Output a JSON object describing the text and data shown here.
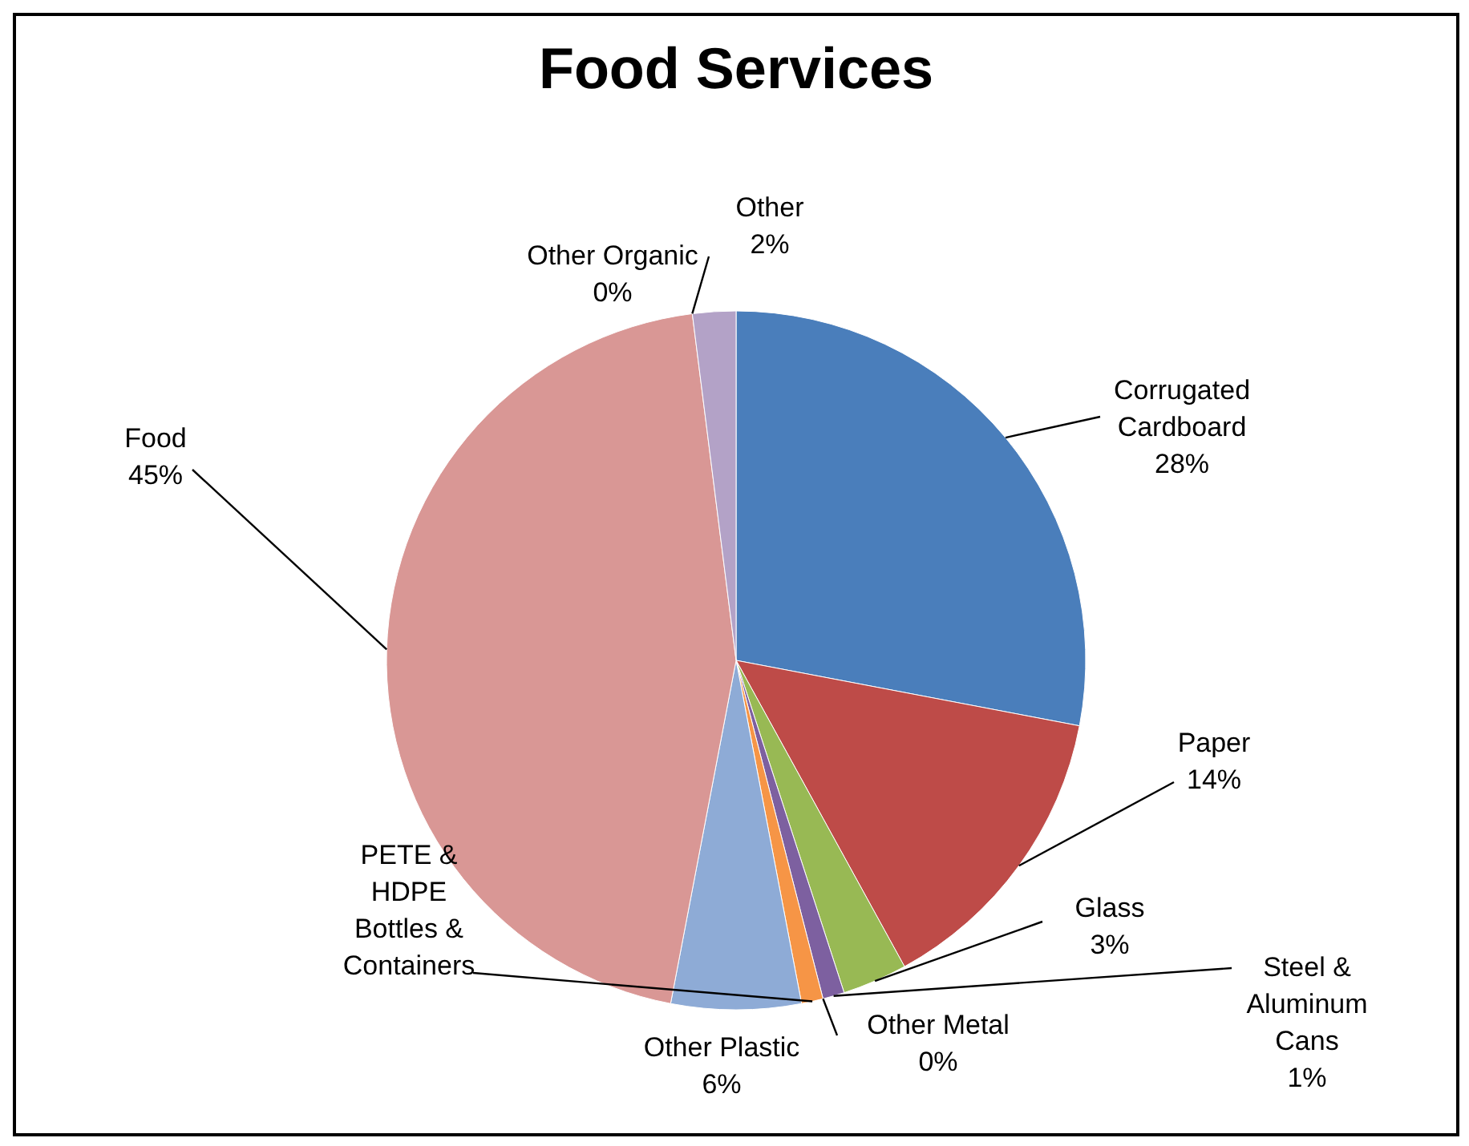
{
  "chart_data": {
    "type": "pie",
    "title": "Food Services",
    "categories": [
      "Corrugated Cardboard",
      "Paper",
      "Glass",
      "Steel & Aluminum Cans",
      "Other Metal",
      "PETE & HDPE Bottles & Containers",
      "Other Plastic",
      "Food",
      "Other Organic",
      "Other"
    ],
    "values": [
      28,
      14,
      3,
      1,
      0,
      1,
      6,
      45,
      0,
      2
    ],
    "value_labels": [
      "28%",
      "14%",
      "3%",
      "1%",
      "0%",
      null,
      "6%",
      "45%",
      "0%",
      "2%"
    ],
    "colors": [
      "#4a7ebb",
      "#be4b48",
      "#98b954",
      "#7d60a0",
      "#46aac5",
      "#f69546",
      "#8eabd6",
      "#d99795",
      "#c3d69b",
      "#b3a2c7"
    ]
  }
}
